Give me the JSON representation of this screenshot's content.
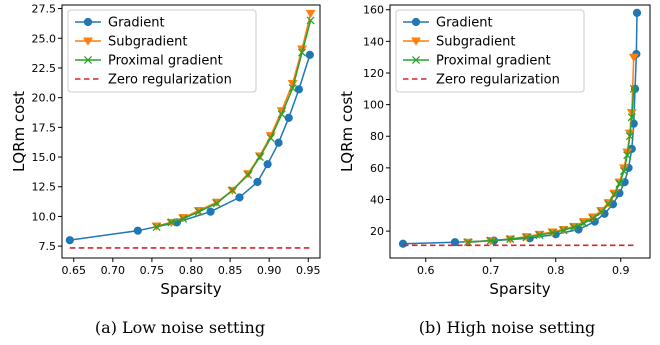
{
  "chart_data": [
    {
      "type": "line",
      "caption": "(a) Low noise setting",
      "xlabel": "Sparsity",
      "ylabel": "LQRm cost",
      "xlim": [
        0.635,
        0.965
      ],
      "ylim": [
        6.5,
        27.8
      ],
      "xticks": [
        0.65,
        0.7,
        0.75,
        0.8,
        0.85,
        0.9,
        0.95
      ],
      "xtick_labels": [
        "0.65",
        "0.70",
        "0.75",
        "0.80",
        "0.85",
        "0.90",
        "0.95"
      ],
      "yticks": [
        7.5,
        10.0,
        12.5,
        15.0,
        17.5,
        20.0,
        22.5,
        25.0,
        27.5
      ],
      "ytick_labels": [
        "7.5",
        "10.0",
        "12.5",
        "15.0",
        "17.5",
        "20.0",
        "22.5",
        "25.0",
        "27.5"
      ],
      "legend": "top-left",
      "series": [
        {
          "name": "Gradient",
          "color": "#1f77b4",
          "marker": "circle",
          "x": [
            0.645,
            0.732,
            0.782,
            0.825,
            0.862,
            0.885,
            0.898,
            0.912,
            0.925,
            0.938,
            0.952
          ],
          "y": [
            8.0,
            8.8,
            9.5,
            10.4,
            11.6,
            12.9,
            14.4,
            16.2,
            18.3,
            20.7,
            23.6
          ]
        },
        {
          "name": "Subgradient",
          "color": "#ff7f0e",
          "marker": "triangle-down",
          "x": [
            0.756,
            0.775,
            0.79,
            0.81,
            0.833,
            0.853,
            0.873,
            0.888,
            0.902,
            0.916,
            0.93,
            0.942,
            0.953
          ],
          "y": [
            9.2,
            9.5,
            9.9,
            10.5,
            11.2,
            12.2,
            13.6,
            15.1,
            16.8,
            18.9,
            21.2,
            24.1,
            27.1
          ]
        },
        {
          "name": "Proximal gradient",
          "color": "#2ca02c",
          "marker": "x",
          "x": [
            0.756,
            0.775,
            0.79,
            0.81,
            0.833,
            0.853,
            0.873,
            0.888,
            0.902,
            0.916,
            0.93,
            0.942,
            0.953
          ],
          "y": [
            9.1,
            9.5,
            9.8,
            10.4,
            11.1,
            12.2,
            13.5,
            15.0,
            16.6,
            18.6,
            20.8,
            23.8,
            26.5
          ]
        },
        {
          "name": "Zero regularization",
          "color": "#d62728",
          "style": "dashed",
          "x": [
            0.645,
            0.955
          ],
          "y": [
            7.35,
            7.35
          ]
        }
      ]
    },
    {
      "type": "line",
      "caption": "(b) High noise setting",
      "xlabel": "Sparsity",
      "ylabel": "LQRm cost",
      "xlim": [
        0.545,
        0.945
      ],
      "ylim": [
        3,
        163
      ],
      "xticks": [
        0.6,
        0.7,
        0.8,
        0.9
      ],
      "xtick_labels": [
        "0.6",
        "0.7",
        "0.8",
        "0.9"
      ],
      "yticks": [
        20,
        40,
        60,
        80,
        100,
        120,
        140,
        160
      ],
      "ytick_labels": [
        "20",
        "40",
        "60",
        "80",
        "100",
        "120",
        "140",
        "160"
      ],
      "legend": "top-left",
      "series": [
        {
          "name": "Gradient",
          "color": "#1f77b4",
          "marker": "circle",
          "x": [
            0.565,
            0.645,
            0.705,
            0.76,
            0.8,
            0.835,
            0.86,
            0.875,
            0.888,
            0.898,
            0.906,
            0.912,
            0.917,
            0.92,
            0.922,
            0.924,
            0.925
          ],
          "y": [
            12,
            13,
            14,
            15.5,
            18,
            21,
            26,
            31,
            37,
            44,
            51,
            60,
            72,
            88,
            110,
            132,
            158
          ]
        },
        {
          "name": "Subgradient",
          "color": "#ff7f0e",
          "marker": "triangle-down",
          "x": [
            0.665,
            0.7,
            0.73,
            0.755,
            0.775,
            0.795,
            0.812,
            0.828,
            0.843,
            0.857,
            0.87,
            0.881,
            0.89,
            0.898,
            0.905,
            0.91,
            0.914,
            0.917,
            0.92
          ],
          "y": [
            13,
            14,
            15,
            16.5,
            18,
            19.5,
            21,
            23,
            26,
            29,
            33,
            38,
            44,
            51,
            60,
            70,
            82,
            95,
            130
          ]
        },
        {
          "name": "Proximal gradient",
          "color": "#2ca02c",
          "marker": "x",
          "x": [
            0.665,
            0.7,
            0.73,
            0.755,
            0.775,
            0.795,
            0.812,
            0.828,
            0.843,
            0.857,
            0.87,
            0.881,
            0.89,
            0.898,
            0.905,
            0.91,
            0.914,
            0.917,
            0.92
          ],
          "y": [
            13,
            14,
            15,
            16,
            17.5,
            19,
            20.5,
            22.5,
            25,
            28,
            32,
            37,
            43,
            50,
            58,
            68,
            80,
            92,
            110
          ]
        },
        {
          "name": "Zero regularization",
          "color": "#d62728",
          "style": "dashed",
          "x": [
            0.565,
            0.925
          ],
          "y": [
            11,
            11
          ]
        }
      ]
    }
  ]
}
